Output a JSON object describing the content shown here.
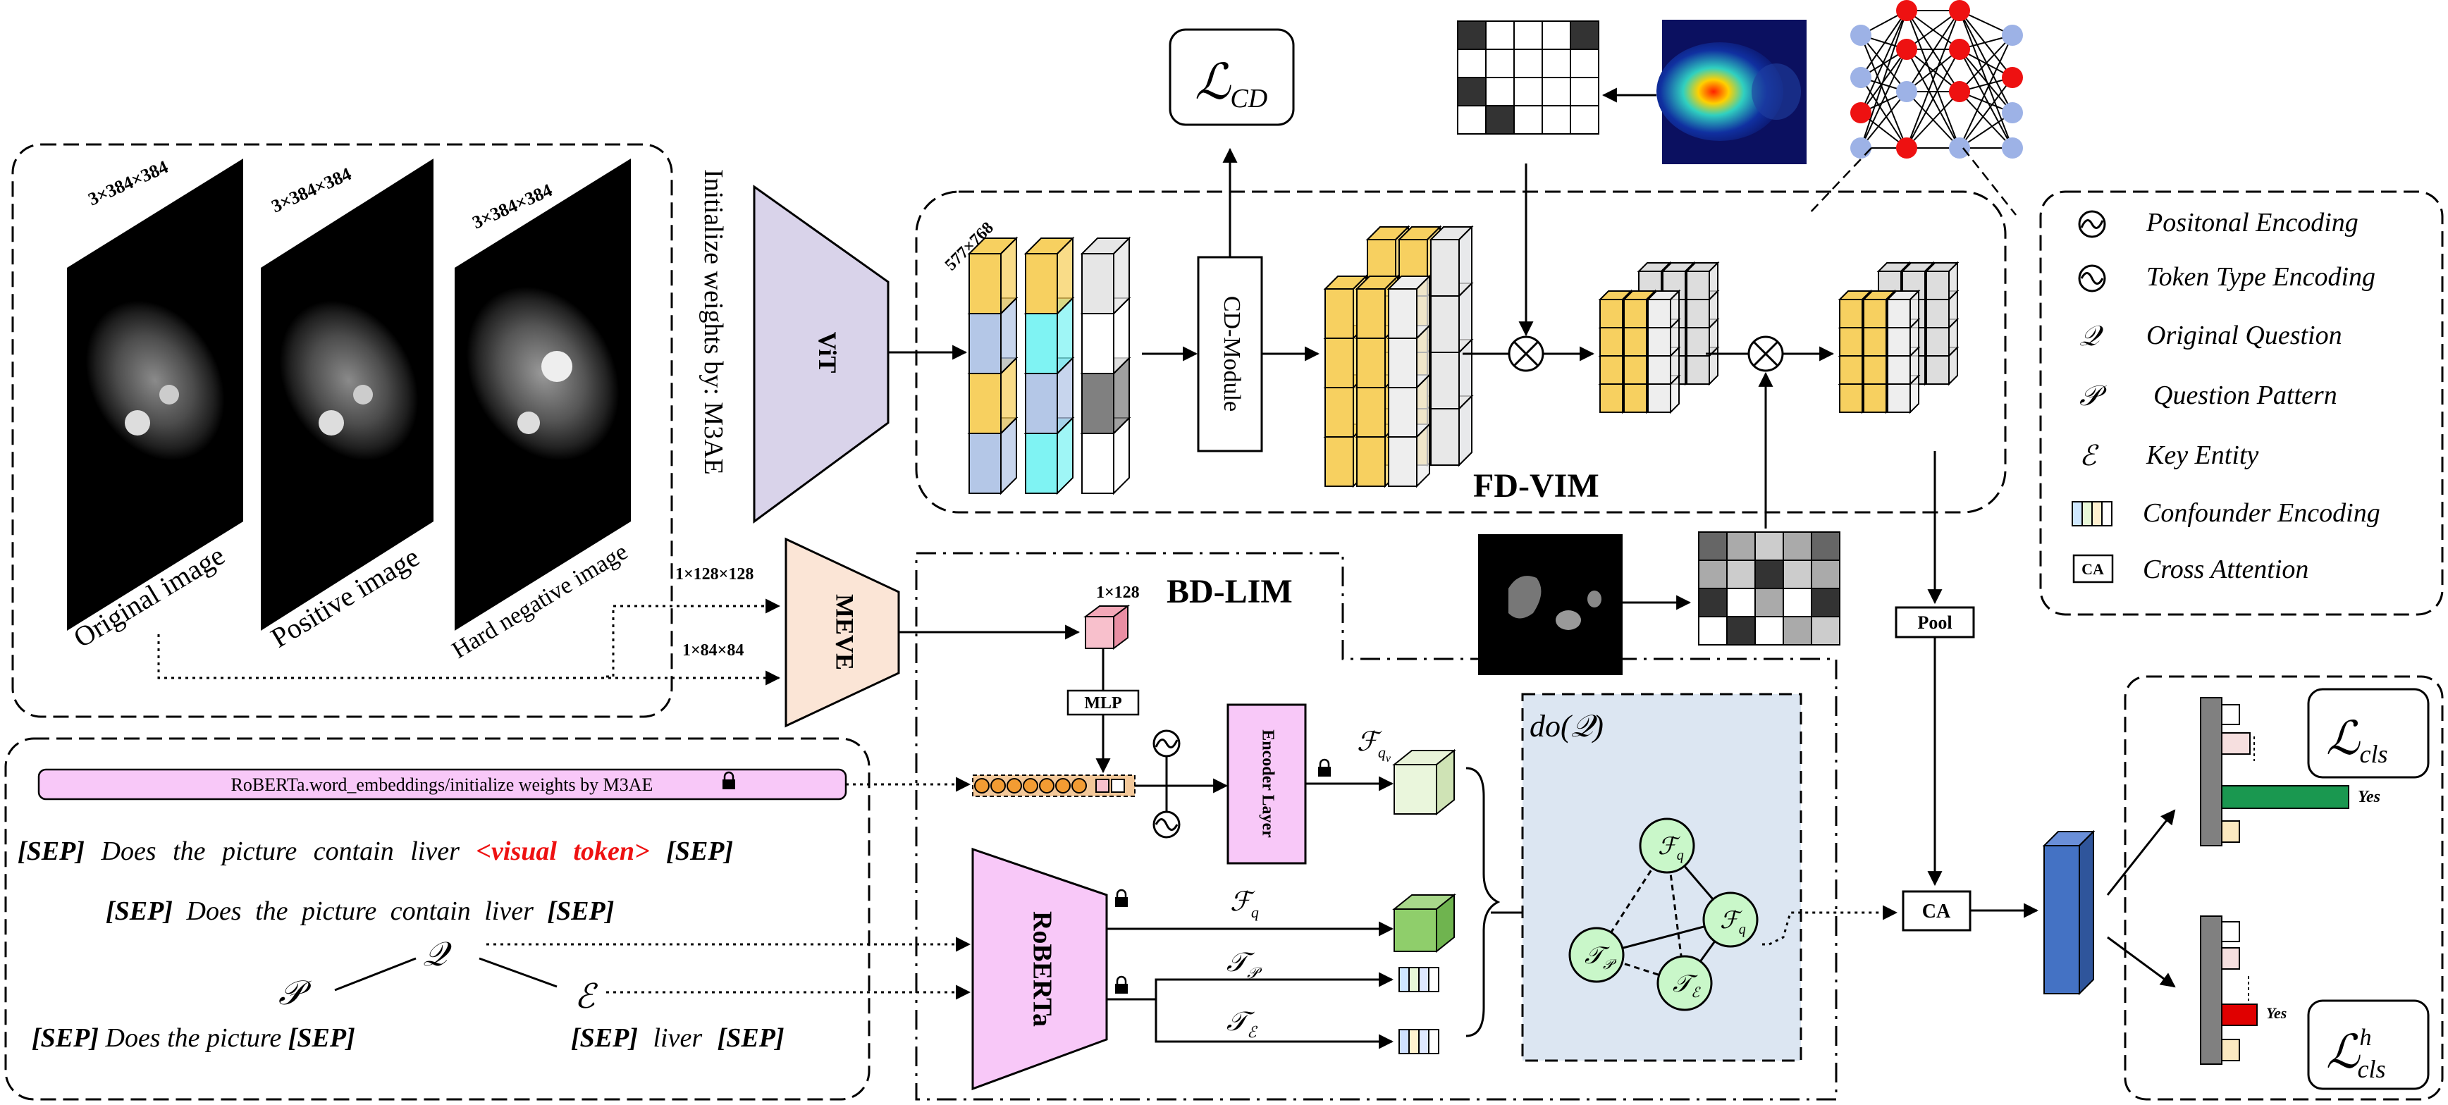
{
  "images": {
    "original": {
      "dims": "3×384×384",
      "caption": "Original image"
    },
    "positive": {
      "dims": "3×384×384",
      "caption": "Positive image"
    },
    "hard_negative": {
      "dims": "3×384×384",
      "caption": "Hard negative image"
    }
  },
  "init_weights": "Initialize weights by: M3AE",
  "vit_label": "ViT",
  "tensor_dims": "577×768",
  "cd_module": "CD-Module",
  "loss_cd": "ℒ",
  "loss_cd_sub": "CD",
  "fd_vim": "FD-VIM",
  "bd_lim": "BD-LIM",
  "meve": "MEVE",
  "meve_in_1": "1×128×128",
  "meve_in_2": "1×84×84",
  "visual_dim": "1×128",
  "mlp": "MLP",
  "encoder_layer": "Encoder Layer",
  "roberta": "RoBERTa",
  "roberta_embed": "RoBERTa.word_embeddings/initialize weights by M3AE",
  "do_q": "do(𝒬)",
  "pool": "Pool",
  "ca": "CA",
  "text": {
    "line1": {
      "sep1": "[SEP]",
      "words": "Does the picture contain liver",
      "vis": "<visual token>",
      "sep2": "[SEP]"
    },
    "line2": {
      "sep1": "[SEP]",
      "words": "Does the picture contain liver",
      "sep2": "[SEP]"
    },
    "q_sym": "𝒬",
    "p_sym": "𝒫",
    "e_sym": "ℰ",
    "pattern": {
      "sep1": "[SEP]",
      "words": "Does the picture",
      "sep2": "[SEP]"
    },
    "entity": {
      "sep1": "[SEP]",
      "words": "liver",
      "sep2": "[SEP]"
    }
  },
  "features": {
    "fqv": "ℱ",
    "fqv_sub": "q",
    "fqv_subsub": "v",
    "fq": "ℱ",
    "fq_sub": "q",
    "tp": "𝒯",
    "tp_sub": "𝒫",
    "te": "𝒯",
    "te_sub": "ℰ"
  },
  "graph_nodes": {
    "fqv": "ℱ",
    "fqv_sub": "q",
    "fq": "ℱ",
    "fq_sub": "q",
    "tp": "𝒯",
    "tp_sub": "𝒫",
    "te": "𝒯",
    "te_sub": "ℰ"
  },
  "outputs": {
    "yes1": "Yes",
    "yes2": "Yes",
    "loss_cls": "ℒ",
    "loss_cls_sub": "cls",
    "loss_cls_h": "ℒ",
    "loss_cls_h_sup": "h",
    "loss_cls_h_sub": "cls"
  },
  "legend": {
    "items": [
      {
        "symbol": "◌",
        "label": "Positonal Encoding"
      },
      {
        "symbol": "◌",
        "label": "Token Type Encoding"
      },
      {
        "symbol": "𝒬",
        "label": "Original Question"
      },
      {
        "symbol": "𝒫",
        "label": "Question Pattern"
      },
      {
        "symbol": "ℰ",
        "label": "Key Entity"
      },
      {
        "symbol": "",
        "label": "Confounder Encoding"
      },
      {
        "symbol": "CA",
        "label": "Cross Attention"
      }
    ]
  },
  "colors": {
    "yellow": "#f7d060",
    "blue": "#b4c7e7",
    "cyan": "#7ff3f3",
    "pink": "#f8c8f8",
    "green": "#8fce6b",
    "graph_bg": "#dce6f2",
    "node": "#c9f7c9",
    "red": "#e11",
    "bar_green": "#1a9850",
    "bar_red": "#e00000",
    "out_blue": "#4472c4"
  }
}
